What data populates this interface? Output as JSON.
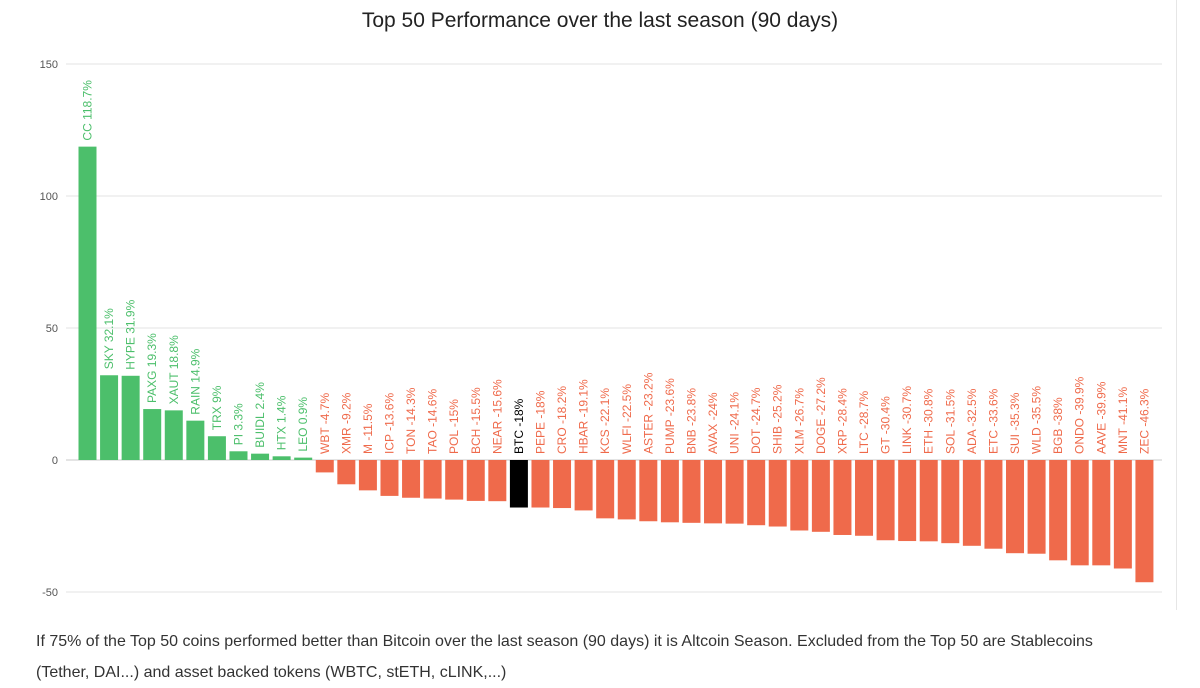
{
  "chart_data": {
    "type": "bar",
    "title": "Top 50 Performance over the last season (90 days)",
    "xlabel": "",
    "ylabel": "",
    "ylim": [
      -50,
      150
    ],
    "yticks": [
      "150",
      "100",
      "50",
      "0",
      "-50"
    ],
    "grid": true,
    "legend": "none",
    "colors": {
      "outperform": "#4cbf6b",
      "underperform": "#ef6a4b",
      "bitcoin": "#000000"
    },
    "categories": [
      "CC",
      "SKY",
      "HYPE",
      "PAXG",
      "XAUT",
      "RAIN",
      "TRX",
      "PI",
      "BUIDL",
      "HTX",
      "LEO",
      "WBT",
      "XMR",
      "M",
      "ICP",
      "TON",
      "TAO",
      "POL",
      "BCH",
      "NEAR",
      "BTC",
      "PEPE",
      "CRO",
      "HBAR",
      "KCS",
      "WLFI",
      "ASTER",
      "PUMP",
      "BNB",
      "AVAX",
      "UNI",
      "DOT",
      "SHIB",
      "XLM",
      "DOGE",
      "XRP",
      "LTC",
      "GT",
      "LINK",
      "ETH",
      "SOL",
      "ADA",
      "ETC",
      "SUI",
      "WLD",
      "BGB",
      "ONDO",
      "AAVE",
      "MNT",
      "ZEC"
    ],
    "values": [
      118.7,
      32.1,
      31.9,
      19.3,
      18.8,
      14.9,
      9,
      3.3,
      2.4,
      1.4,
      0.9,
      -4.7,
      -9.2,
      -11.5,
      -13.6,
      -14.3,
      -14.6,
      -15,
      -15.5,
      -15.6,
      -18,
      -18,
      -18.2,
      -19.1,
      -22.1,
      -22.5,
      -23.2,
      -23.6,
      -23.8,
      -24,
      -24.1,
      -24.7,
      -25.2,
      -26.7,
      -27.2,
      -28.4,
      -28.7,
      -30.4,
      -30.7,
      -30.8,
      -31.5,
      -32.5,
      -33.6,
      -35.3,
      -35.5,
      -38,
      -39.9,
      -39.9,
      -41.1,
      -46.3
    ],
    "labels": [
      "CC 118.7%",
      "SKY 32.1%",
      "HYPE 31.9%",
      "PAXG 19.3%",
      "XAUT 18.8%",
      "RAIN 14.9%",
      "TRX 9%",
      "PI 3.3%",
      "BUIDL 2.4%",
      "HTX 1.4%",
      "LEO 0.9%",
      "WBT -4.7%",
      "XMR -9.2%",
      "M -11.5%",
      "ICP -13.6%",
      "TON -14.3%",
      "TAO -14.6%",
      "POL -15%",
      "BCH -15.5%",
      "NEAR -15.6%",
      "BTC -18%",
      "PEPE -18%",
      "CRO -18.2%",
      "HBAR -19.1%",
      "KCS -22.1%",
      "WLFI -22.5%",
      "ASTER -23.2%",
      "PUMP -23.6%",
      "BNB -23.8%",
      "AVAX -24%",
      "UNI -24.1%",
      "DOT -24.7%",
      "SHIB -25.2%",
      "XLM -26.7%",
      "DOGE -27.2%",
      "XRP -28.4%",
      "LTC -28.7%",
      "GT -30.4%",
      "LINK -30.7%",
      "ETH -30.8%",
      "SOL -31.5%",
      "ADA -32.5%",
      "ETC -33.6%",
      "SUI -35.3%",
      "WLD -35.5%",
      "BGB -38%",
      "ONDO -39.9%",
      "AAVE -39.9%",
      "MNT -41.1%",
      "ZEC -46.3%"
    ],
    "highlight": "BTC"
  },
  "caption": "If 75% of the Top 50 coins performed better than Bitcoin over the last season (90 days) it is Altcoin Season. Excluded from the Top 50 are Stablecoins (Tether, DAI...) and asset backed tokens (WBTC, stETH, cLINK,...)"
}
